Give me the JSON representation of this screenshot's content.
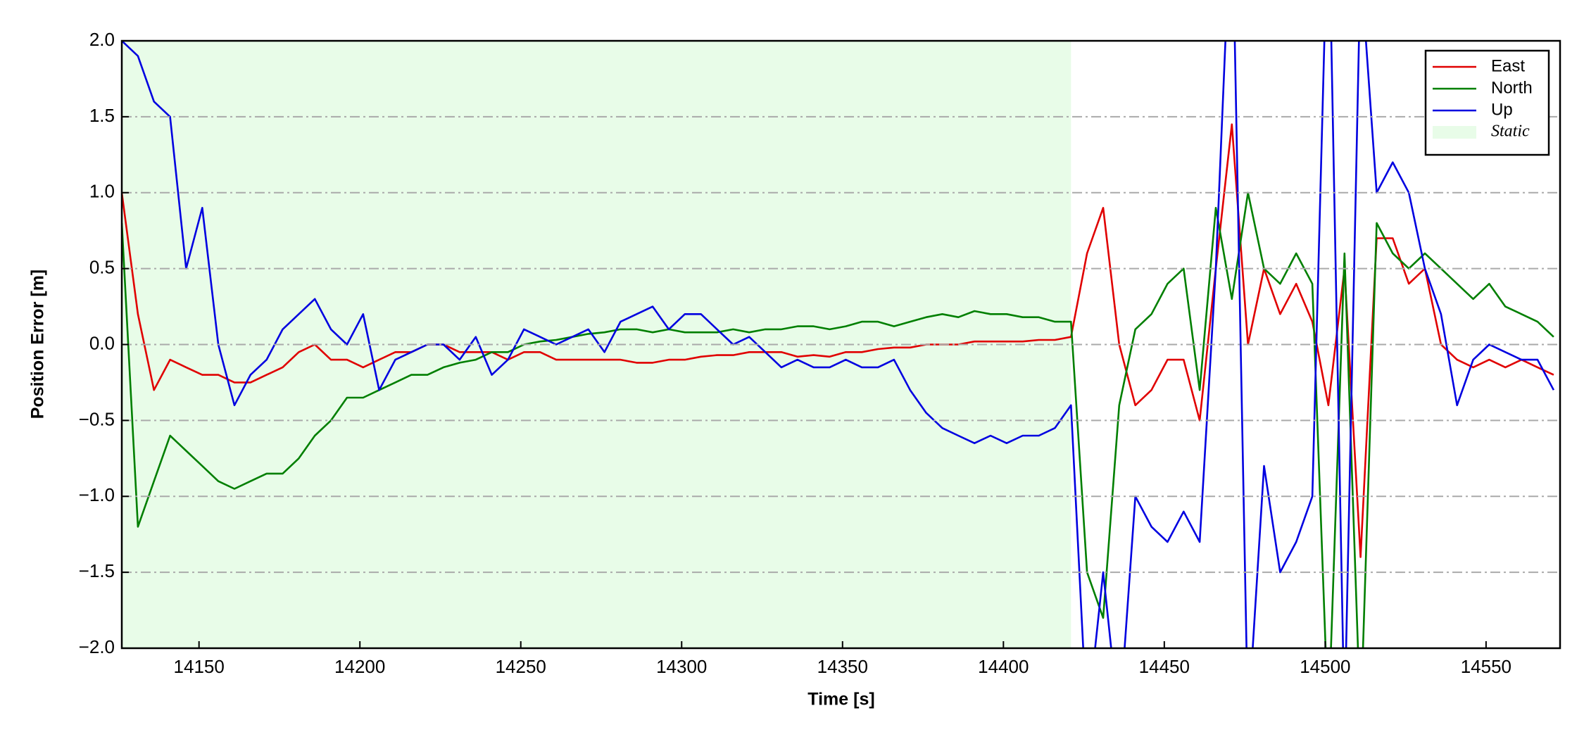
{
  "chart_data": {
    "type": "line",
    "x_label": "Time [s]",
    "y_label": "Position Error [m]",
    "x": [
      14126,
      14131,
      14136,
      14141,
      14146,
      14151,
      14156,
      14161,
      14166,
      14171,
      14176,
      14181,
      14186,
      14191,
      14196,
      14201,
      14206,
      14211,
      14216,
      14221,
      14226,
      14231,
      14236,
      14241,
      14246,
      14251,
      14256,
      14261,
      14266,
      14271,
      14276,
      14281,
      14286,
      14291,
      14296,
      14301,
      14306,
      14311,
      14316,
      14321,
      14326,
      14331,
      14336,
      14341,
      14346,
      14351,
      14356,
      14361,
      14366,
      14371,
      14376,
      14381,
      14386,
      14391,
      14396,
      14401,
      14406,
      14411,
      14416,
      14421,
      14426,
      14431,
      14436,
      14441,
      14446,
      14451,
      14456,
      14461,
      14466,
      14471,
      14476,
      14481,
      14486,
      14491,
      14496,
      14501,
      14506,
      14511,
      14516,
      14521,
      14526,
      14531,
      14536,
      14541,
      14546,
      14551,
      14556,
      14561,
      14566,
      14571
    ],
    "series": [
      {
        "name": "East",
        "color": "#e00000",
        "values": [
          1.0,
          0.2,
          -0.3,
          -0.1,
          -0.15,
          -0.2,
          -0.2,
          -0.25,
          -0.25,
          -0.2,
          -0.15,
          -0.05,
          0.0,
          -0.1,
          -0.1,
          -0.15,
          -0.1,
          -0.05,
          -0.05,
          0.0,
          0.0,
          -0.05,
          -0.05,
          -0.05,
          -0.1,
          -0.05,
          -0.05,
          -0.1,
          -0.1,
          -0.1,
          -0.1,
          -0.1,
          -0.12,
          -0.12,
          -0.1,
          -0.1,
          -0.08,
          -0.07,
          -0.07,
          -0.05,
          -0.05,
          -0.05,
          -0.08,
          -0.07,
          -0.08,
          -0.05,
          -0.05,
          -0.03,
          -0.02,
          -0.02,
          0.0,
          0.0,
          0.0,
          0.02,
          0.02,
          0.02,
          0.02,
          0.03,
          0.03,
          0.05,
          0.6,
          0.9,
          0.0,
          -0.4,
          -0.3,
          -0.1,
          -0.1,
          -0.5,
          0.5,
          1.45,
          0.0,
          0.5,
          0.2,
          0.4,
          0.15,
          -0.4,
          0.5,
          -1.4,
          0.7,
          0.7,
          0.4,
          0.5,
          0.0,
          -0.1,
          -0.15,
          -0.1,
          -0.15,
          -0.1,
          -0.15,
          -0.2
        ]
      },
      {
        "name": "North",
        "color": "#007f00",
        "values": [
          0.8,
          -1.2,
          -0.9,
          -0.6,
          -0.7,
          -0.8,
          -0.9,
          -0.95,
          -0.9,
          -0.85,
          -0.85,
          -0.75,
          -0.6,
          -0.5,
          -0.35,
          -0.35,
          -0.3,
          -0.25,
          -0.2,
          -0.2,
          -0.15,
          -0.12,
          -0.1,
          -0.05,
          -0.05,
          0.0,
          0.02,
          0.03,
          0.05,
          0.07,
          0.08,
          0.1,
          0.1,
          0.08,
          0.1,
          0.08,
          0.08,
          0.08,
          0.1,
          0.08,
          0.1,
          0.1,
          0.12,
          0.12,
          0.1,
          0.12,
          0.15,
          0.15,
          0.12,
          0.15,
          0.18,
          0.2,
          0.18,
          0.22,
          0.2,
          0.2,
          0.18,
          0.18,
          0.15,
          0.15,
          -1.5,
          -1.8,
          -0.4,
          0.1,
          0.2,
          0.4,
          0.5,
          -0.3,
          0.9,
          0.3,
          1.0,
          0.5,
          0.4,
          0.6,
          0.4,
          -2.5,
          0.6,
          -2.5,
          0.8,
          0.6,
          0.5,
          0.6,
          0.5,
          0.4,
          0.3,
          0.4,
          0.25,
          0.2,
          0.15,
          0.05
        ]
      },
      {
        "name": "Up",
        "color": "#0000e0",
        "values": [
          2.0,
          1.9,
          1.6,
          1.5,
          0.5,
          0.9,
          0.0,
          -0.4,
          -0.2,
          -0.1,
          0.1,
          0.2,
          0.3,
          0.1,
          0.0,
          0.2,
          -0.3,
          -0.1,
          -0.05,
          0.0,
          0.0,
          -0.1,
          0.05,
          -0.2,
          -0.1,
          0.1,
          0.05,
          0.0,
          0.05,
          0.1,
          -0.05,
          0.15,
          0.2,
          0.25,
          0.1,
          0.2,
          0.2,
          0.1,
          0.0,
          0.05,
          -0.05,
          -0.15,
          -0.1,
          -0.15,
          -0.15,
          -0.1,
          -0.15,
          -0.15,
          -0.1,
          -0.3,
          -0.45,
          -0.55,
          -0.6,
          -0.65,
          -0.6,
          -0.65,
          -0.6,
          -0.6,
          -0.55,
          -0.4,
          -2.5,
          -1.5,
          -2.5,
          -1.0,
          -1.2,
          -1.3,
          -1.1,
          -1.3,
          0.5,
          3.0,
          -2.5,
          -0.8,
          -1.5,
          -1.3,
          -1.0,
          3.0,
          -2.5,
          2.5,
          1.0,
          1.2,
          1.0,
          0.5,
          0.2,
          -0.4,
          -0.1,
          0.0,
          -0.05,
          -0.1,
          -0.1,
          -0.3
        ]
      }
    ],
    "spans": [
      {
        "name": "Static",
        "x0": 14126,
        "x1": 14421,
        "color": "#e8fce8"
      }
    ],
    "xlim": [
      14126,
      14573
    ],
    "xticks": [
      14150,
      14200,
      14250,
      14300,
      14350,
      14400,
      14450,
      14500,
      14550
    ],
    "ylim": [
      -2.0,
      2.0
    ],
    "yticks": [
      {
        "value": -2.0,
        "label": "−2.0"
      },
      {
        "value": -1.5,
        "label": "−1.5"
      },
      {
        "value": -1.0,
        "label": "−1.0"
      },
      {
        "value": -0.5,
        "label": "−0.5"
      },
      {
        "value": 0.0,
        "label": "0.0"
      },
      {
        "value": 0.5,
        "label": "0.5"
      },
      {
        "value": 1.0,
        "label": "1.0"
      },
      {
        "value": 1.5,
        "label": "1.5"
      },
      {
        "value": 2.0,
        "label": "2.0"
      }
    ],
    "grid": true,
    "legend": "upper right"
  }
}
